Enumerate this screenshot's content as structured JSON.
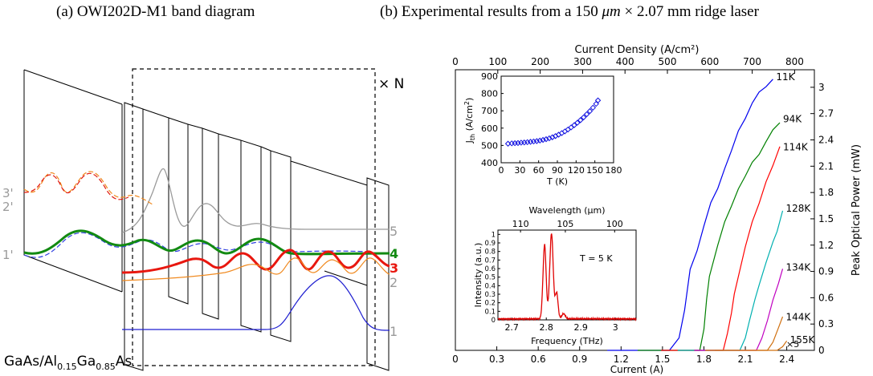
{
  "captions": {
    "left": "(a) OWI202D-M1 band diagram",
    "right_prefix": "(b) Experimental results from a 150 ",
    "right_unit1": "μm",
    "right_times": " × ",
    "right_value2": "2.07",
    "right_unit2": " mm",
    "right_suffix": " ridge laser"
  },
  "band_diagram": {
    "repeat_label": "× N",
    "material": [
      "GaAs/Al",
      "0.15",
      "Ga",
      "0.85",
      "As"
    ],
    "state_labels_left": [
      "3'",
      "2'",
      "1'"
    ],
    "state_labels_right": [
      "5",
      "4",
      "3",
      "2",
      "1"
    ],
    "colors": {
      "s1": "#1f1fd0",
      "s2": "#f08a20",
      "s3": "#e8170f",
      "s4": "#128a12",
      "s5": "#9a9a9a",
      "dash_blue": "#2f3fe0",
      "dash_orange": "#f0802a",
      "dash_red": "#e01a10"
    }
  },
  "chart_data": [
    {
      "type": "line",
      "name": "LI curves",
      "xlabel": "Current (A)",
      "xlim": [
        0,
        2.6
      ],
      "xticks": [
        "0",
        "0.3",
        "0.6",
        "0.9",
        "1.2",
        "1.5",
        "1.8",
        "2.1",
        "2.4"
      ],
      "top_xlabel": "Current Density (A/cm²)",
      "top_xticks": [
        "0",
        "100",
        "200",
        "300",
        "400",
        "500",
        "600",
        "700",
        "800"
      ],
      "ylabel": "Peak Optical Power (mW)",
      "ylim": [
        0,
        3.2
      ],
      "yticks": [
        "0",
        "0.3",
        "0.6",
        "0.9",
        "1.2",
        "1.5",
        "1.8",
        "2.1",
        "2.4",
        "2.7",
        "3"
      ],
      "series": [
        {
          "name": "11K",
          "color": "#0000ee",
          "x": [
            1.55,
            1.62,
            1.66,
            1.7,
            1.75,
            1.8,
            1.85,
            1.9,
            1.95,
            2.0,
            2.05,
            2.1,
            2.15,
            2.2,
            2.25,
            2.3
          ],
          "y": [
            0,
            0.15,
            0.45,
            0.9,
            1.15,
            1.42,
            1.67,
            1.87,
            2.08,
            2.27,
            2.48,
            2.66,
            2.82,
            2.93,
            3.03,
            3.1
          ]
        },
        {
          "name": "94K",
          "color": "#008000",
          "x": [
            1.77,
            1.8,
            1.82,
            1.84,
            1.86,
            1.9,
            1.95,
            2.0,
            2.05,
            2.1,
            2.15,
            2.2,
            2.25,
            2.3,
            2.35
          ],
          "y": [
            0,
            0.25,
            0.58,
            0.82,
            0.98,
            1.2,
            1.45,
            1.67,
            1.85,
            1.98,
            2.12,
            2.25,
            2.38,
            2.5,
            2.62
          ]
        },
        {
          "name": "114K",
          "color": "#ff0000",
          "x": [
            1.94,
            1.97,
            2.0,
            2.02,
            2.05,
            2.1,
            2.15,
            2.2,
            2.25,
            2.3,
            2.35
          ],
          "y": [
            0,
            0.2,
            0.42,
            0.62,
            0.86,
            1.18,
            1.45,
            1.7,
            1.93,
            2.1,
            2.3
          ]
        },
        {
          "name": "128K",
          "color": "#00b0b0",
          "x": [
            2.06,
            2.1,
            2.13,
            2.17,
            2.2,
            2.25,
            2.3,
            2.33,
            2.37
          ],
          "y": [
            0,
            0.15,
            0.33,
            0.56,
            0.76,
            1.0,
            1.22,
            1.38,
            1.6
          ]
        },
        {
          "name": "134K",
          "color": "#c000c0",
          "x": [
            2.18,
            2.22,
            2.26,
            2.3,
            2.34,
            2.37
          ],
          "y": [
            0,
            0.15,
            0.33,
            0.55,
            0.78,
            0.93
          ]
        },
        {
          "name": "144K",
          "color": "#d07010",
          "x": [
            2.26,
            2.3,
            2.34,
            2.37
          ],
          "y": [
            0,
            0.1,
            0.25,
            0.36
          ]
        },
        {
          "name": "155K",
          "color": "#d07010",
          "x": [
            2.33,
            2.37,
            2.4
          ],
          "y": [
            0,
            0.05,
            0.1
          ]
        }
      ],
      "annotations": [
        "×5"
      ]
    },
    {
      "type": "scatter",
      "name": "Jth vs T inset",
      "xlabel": "T (K)",
      "ylabel": "J_th (A/cm²)",
      "xlim": [
        0,
        180
      ],
      "ylim": [
        400,
        900
      ],
      "xticks": [
        "0",
        "30",
        "60",
        "90",
        "120",
        "150",
        "180"
      ],
      "yticks": [
        "400",
        "500",
        "600",
        "700",
        "800",
        "900"
      ],
      "x": [
        11,
        17,
        22,
        27,
        32,
        37,
        42,
        47,
        52,
        57,
        62,
        67,
        72,
        77,
        82,
        87,
        92,
        97,
        102,
        107,
        112,
        117,
        122,
        127,
        132,
        137,
        142,
        147,
        152,
        155
      ],
      "y": [
        510,
        512,
        513,
        514,
        516,
        517,
        519,
        521,
        523,
        525,
        528,
        532,
        536,
        541,
        547,
        554,
        562,
        571,
        581,
        592,
        604,
        617,
        631,
        646,
        662,
        680,
        698,
        718,
        740,
        760
      ]
    },
    {
      "type": "line",
      "name": "Spectrum inset",
      "title": "T = 5 K",
      "xlabel": "Frequency (THz)",
      "ylabel": "Intensity (a.u.)",
      "xlim": [
        2.66,
        3.06
      ],
      "ylim": [
        0,
        1.05
      ],
      "xticks": [
        "2.7",
        "2.8",
        "2.9",
        "3"
      ],
      "yticks": [
        "0",
        "0.1",
        "0.2",
        "0.3",
        "0.4",
        "0.5",
        "0.6",
        "0.7",
        "0.8",
        "0.9",
        "1"
      ],
      "top_xlabel": "Wavelength (μm)",
      "top_xticks": [
        "110",
        "105",
        "100"
      ],
      "peaks": [
        {
          "f": 2.795,
          "h": 0.87,
          "w": 0.0045
        },
        {
          "f": 2.815,
          "h": 1.0,
          "w": 0.005
        },
        {
          "f": 2.83,
          "h": 0.3,
          "w": 0.004
        },
        {
          "f": 2.85,
          "h": 0.06,
          "w": 0.005
        }
      ],
      "color": "#e00000"
    }
  ]
}
